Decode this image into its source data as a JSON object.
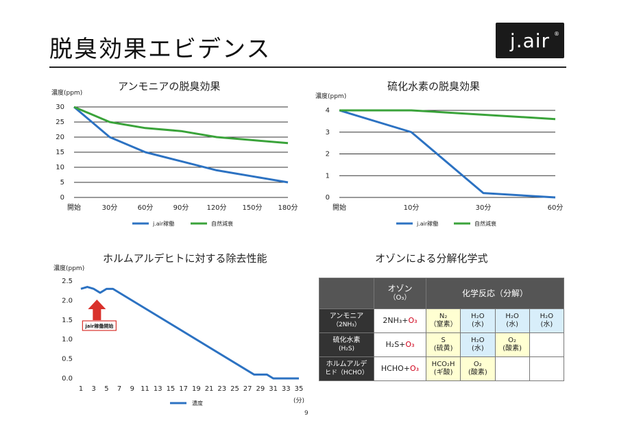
{
  "page": {
    "title": "脱臭効果エビデンス",
    "logo": "j.air",
    "logo_mark": "®",
    "page_number": "9"
  },
  "colors": {
    "jair_series": "#2c72c2",
    "natural_series": "#3aa33a",
    "arrow": "#d9312b",
    "grid": "#333333"
  },
  "chart_data": [
    {
      "type": "line",
      "title": "アンモニアの脱臭効果",
      "ylabel": "濃度(ppm)",
      "xlabel": "",
      "categories": [
        "開始",
        "30分",
        "60分",
        "90分",
        "120分",
        "150分",
        "180分"
      ],
      "y_ticks": [
        "30",
        "25",
        "20",
        "15",
        "10",
        "5",
        "0"
      ],
      "ylim": [
        0,
        30
      ],
      "grid": true,
      "legend_position": "bottom",
      "series": [
        {
          "name": "j.air稼働",
          "values": [
            30,
            20,
            15,
            12,
            9,
            7,
            5
          ]
        },
        {
          "name": "自然減衰",
          "values": [
            30,
            25,
            23,
            22,
            20,
            19,
            18
          ]
        }
      ]
    },
    {
      "type": "line",
      "title": "硫化水素の脱臭効果",
      "ylabel": "濃度(ppm)",
      "xlabel": "",
      "categories": [
        "開始",
        "10分",
        "30分",
        "60分"
      ],
      "y_ticks": [
        "4",
        "3",
        "2",
        "1",
        "0"
      ],
      "ylim": [
        0,
        4
      ],
      "grid": true,
      "legend_position": "bottom",
      "series": [
        {
          "name": "j.air稼働",
          "values": [
            4,
            3,
            0.2,
            0
          ]
        },
        {
          "name": "自然減衰",
          "values": [
            4,
            4,
            3.8,
            3.6
          ]
        }
      ]
    },
    {
      "type": "line",
      "title": "ホルムアルデヒトに対する除去性能",
      "ylabel": "濃度(ppm)",
      "xlabel": "(分)",
      "x_ticks": [
        "1",
        "3",
        "5",
        "7",
        "9",
        "11",
        "13",
        "15",
        "17",
        "19",
        "21",
        "23",
        "25",
        "27",
        "29",
        "31",
        "33",
        "35"
      ],
      "y_ticks": [
        "2.5",
        "2.0",
        "1.5",
        "1.0",
        "0.5",
        "0.0"
      ],
      "ylim": [
        0,
        2.5
      ],
      "xlim": [
        1,
        35
      ],
      "grid": false,
      "legend_position": "bottom",
      "annotation": {
        "text": "jair稼働開始",
        "x": 3.5
      },
      "series": [
        {
          "name": "濃度",
          "x": [
            1,
            2,
            3,
            4,
            5,
            6,
            28,
            29,
            30,
            31,
            32,
            33,
            34,
            35
          ],
          "values": [
            2.3,
            2.35,
            2.3,
            2.2,
            2.3,
            2.3,
            0.1,
            0.1,
            0.1,
            0,
            0,
            0,
            0,
            0
          ]
        }
      ]
    }
  ],
  "reaction_table": {
    "title": "オゾンによる分解化学式",
    "header": {
      "ozone": "オゾン",
      "ozone_sub": "（O₃）",
      "reaction": "化学反応（分解）"
    },
    "rows": [
      {
        "name": "アンモニア",
        "name_sub": "（2NH₃）",
        "formula": "2NH₃+",
        "oxidant": "O₃",
        "products": [
          {
            "formula": "N₂",
            "label": "（窒素）",
            "kind": "yel"
          },
          {
            "formula": "H₂O",
            "label": "(水)",
            "kind": "blu"
          },
          {
            "formula": "H₂O",
            "label": "(水)",
            "kind": "blu"
          },
          {
            "formula": "H₂O",
            "label": "(水)",
            "kind": "blu"
          }
        ]
      },
      {
        "name": "硫化水素",
        "name_sub": "(H₂S)",
        "formula": "H₂S+",
        "oxidant": "O₃",
        "products": [
          {
            "formula": "S",
            "label": "(硫黄)",
            "kind": "yel"
          },
          {
            "formula": "H₂O",
            "label": "(水)",
            "kind": "blu"
          },
          {
            "formula": "O₂",
            "label": "(酸素)",
            "kind": "yel"
          },
          {
            "formula": "",
            "label": "",
            "kind": "emp"
          }
        ]
      },
      {
        "name": "ホルムアルデ",
        "name_sub": "ヒド（HCHO）",
        "formula": "HCHO+",
        "oxidant": "O₃",
        "products": [
          {
            "formula": "HCO₂H",
            "label": "(ギ酸)",
            "kind": "yel"
          },
          {
            "formula": "O₂",
            "label": "(酸素)",
            "kind": "yel"
          },
          {
            "formula": "",
            "label": "",
            "kind": "emp"
          },
          {
            "formula": "",
            "label": "",
            "kind": "emp"
          }
        ]
      }
    ]
  }
}
